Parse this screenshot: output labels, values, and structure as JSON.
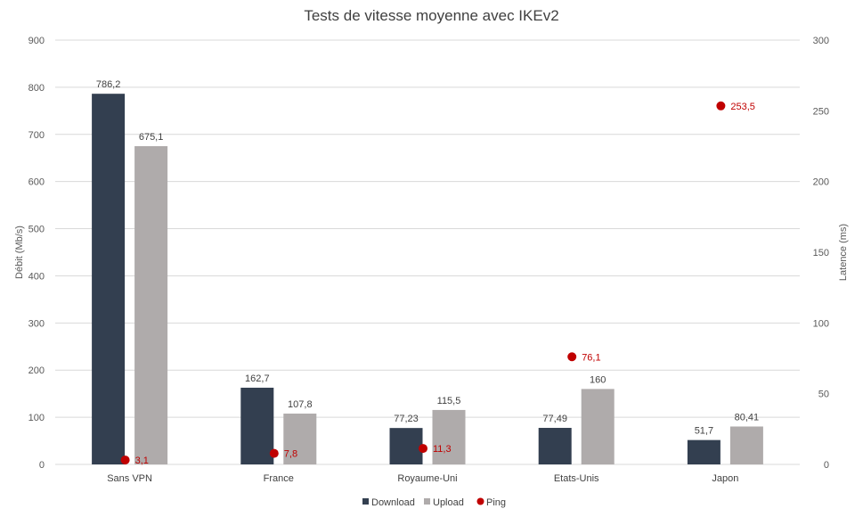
{
  "chart_data": {
    "type": "bar",
    "title": "Tests de vitesse moyenne avec IKEv2",
    "ylabel": "Débit (Mb/s)",
    "y2label": "Latence (ms)",
    "ylim": [
      0,
      900
    ],
    "yticks": [
      "0",
      "100",
      "200",
      "300",
      "400",
      "500",
      "600",
      "700",
      "800",
      "900"
    ],
    "y2lim": [
      0,
      300
    ],
    "y2ticks": [
      "0",
      "50",
      "100",
      "150",
      "200",
      "250",
      "300"
    ],
    "categories": [
      "Sans VPN",
      "France",
      "Royaume-Uni",
      "Etats-Unis",
      "Japon"
    ],
    "series": [
      {
        "name": "Download",
        "axis": "left",
        "kind": "bar",
        "color": "#333f50",
        "values": [
          786.2,
          162.7,
          77.23,
          77.49,
          51.7
        ],
        "labels": [
          "786,2",
          "162,7",
          "77,23",
          "77,49",
          "51,7"
        ]
      },
      {
        "name": "Upload",
        "axis": "right-hand bar",
        "kind": "bar",
        "color": "#afabab",
        "values": [
          675.1,
          107.8,
          115.5,
          160,
          80.41
        ],
        "labels": [
          "675,1",
          "107,8",
          "115,5",
          "160",
          "80,41"
        ]
      },
      {
        "name": "Ping",
        "axis": "right",
        "kind": "scatter",
        "color": "#c00000",
        "values": [
          3.1,
          7.8,
          11.3,
          76.1,
          253.5
        ],
        "labels": [
          "3,1",
          "7,8",
          "11,3",
          "76,1",
          "253,5"
        ]
      }
    ],
    "grid": true,
    "legend": "bottom-center"
  }
}
